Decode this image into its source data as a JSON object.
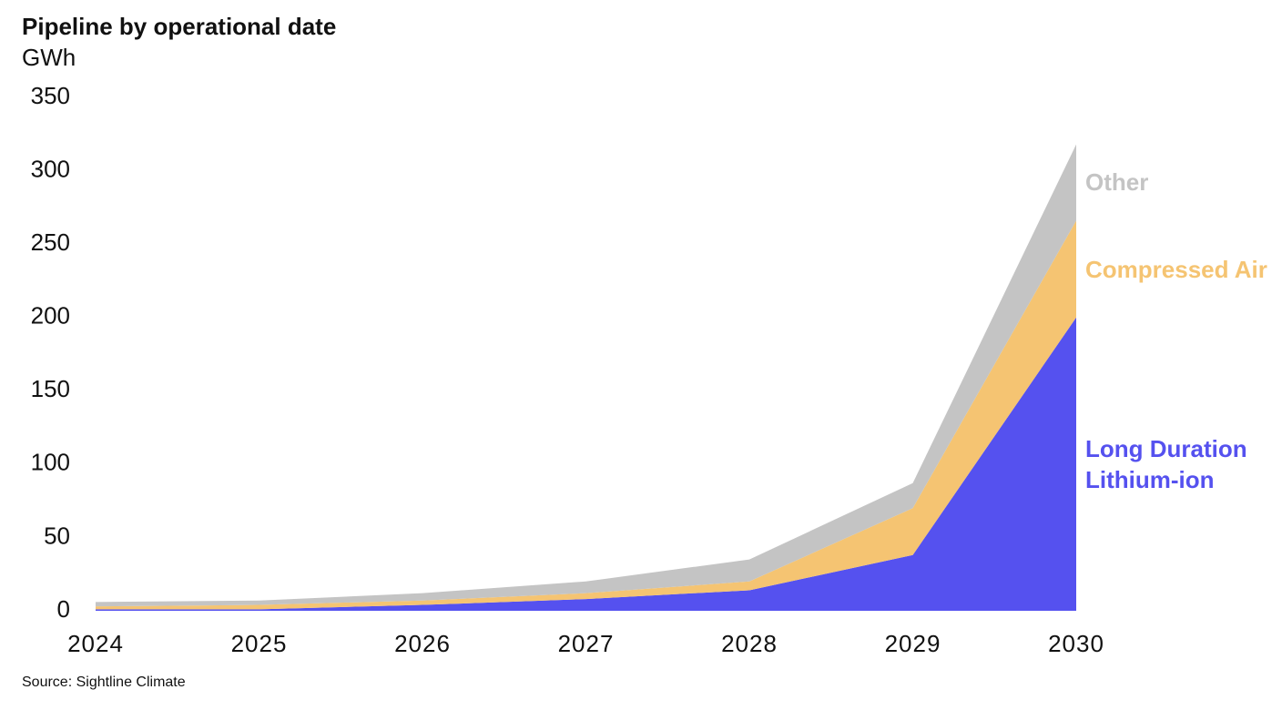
{
  "chart_data": {
    "type": "stacked_area",
    "title": "Pipeline by operational date",
    "y_label": "GWh",
    "source": "Source:  Sightline Climate",
    "x": [
      2024,
      2025,
      2026,
      2027,
      2028,
      2029,
      2030
    ],
    "xlim": [
      2024,
      2030
    ],
    "xticks": [
      2024,
      2025,
      2026,
      2027,
      2028,
      2029,
      2030
    ],
    "ylim": [
      0,
      350
    ],
    "yticks": [
      0,
      50,
      100,
      150,
      200,
      250,
      300,
      350
    ],
    "series": [
      {
        "name": "Long Duration Lithium-ion",
        "color": "#5551ef",
        "values": [
          1,
          1,
          4,
          8,
          14,
          38,
          200
        ]
      },
      {
        "name": "Compressed Air",
        "color": "#f5c472",
        "values": [
          2,
          3,
          3,
          4,
          6,
          32,
          66
        ]
      },
      {
        "name": "Other",
        "color": "#c4c4c4",
        "values": [
          3,
          3,
          5,
          8,
          15,
          17,
          52
        ]
      }
    ]
  }
}
